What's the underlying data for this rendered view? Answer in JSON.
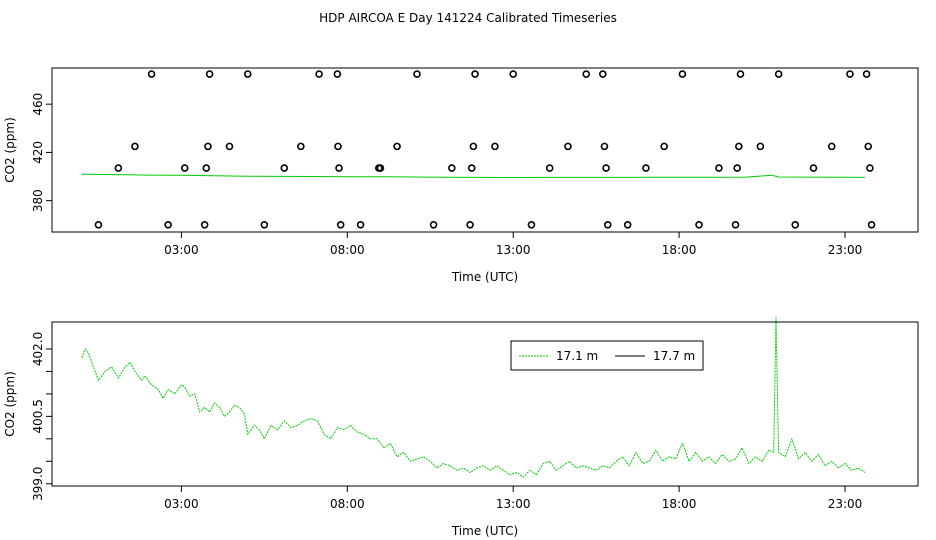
{
  "title": "HDP AIRCOA E  Day 141224  Calibrated Timeseries",
  "colors": {
    "series_green": "#00cc00",
    "series_black": "#000000",
    "axis": "#000000"
  },
  "chart_data": [
    {
      "type": "scatter",
      "title": "",
      "xlabel": "Time (UTC)",
      "ylabel": "CO2 (ppm)",
      "xlim": [
        -0.9,
        25.2
      ],
      "ylim": [
        354,
        490
      ],
      "x_ticks": [
        3,
        8,
        13,
        18,
        23
      ],
      "x_tick_labels": [
        "03:00",
        "08:00",
        "13:00",
        "18:00",
        "23:00"
      ],
      "y_ticks": [
        380,
        420,
        460
      ],
      "y_tick_labels": [
        "380",
        "420",
        "460"
      ],
      "grid": false,
      "calibration_points": [
        {
          "x": 0.5,
          "y": 360
        },
        {
          "x": 1.1,
          "y": 407
        },
        {
          "x": 1.6,
          "y": 425
        },
        {
          "x": 2.1,
          "y": 485
        },
        {
          "x": 2.6,
          "y": 360
        },
        {
          "x": 3.1,
          "y": 407
        },
        {
          "x": 3.7,
          "y": 360
        },
        {
          "x": 3.75,
          "y": 407
        },
        {
          "x": 3.8,
          "y": 425
        },
        {
          "x": 3.85,
          "y": 485
        },
        {
          "x": 4.45,
          "y": 425
        },
        {
          "x": 5.0,
          "y": 485
        },
        {
          "x": 5.5,
          "y": 360
        },
        {
          "x": 6.1,
          "y": 407
        },
        {
          "x": 6.6,
          "y": 425
        },
        {
          "x": 7.15,
          "y": 485
        },
        {
          "x": 7.7,
          "y": 485
        },
        {
          "x": 7.72,
          "y": 425
        },
        {
          "x": 7.75,
          "y": 407
        },
        {
          "x": 7.8,
          "y": 360
        },
        {
          "x": 8.4,
          "y": 360
        },
        {
          "x": 8.95,
          "y": 407
        },
        {
          "x": 9.0,
          "y": 407
        },
        {
          "x": 9.5,
          "y": 425
        },
        {
          "x": 10.1,
          "y": 485
        },
        {
          "x": 10.6,
          "y": 360
        },
        {
          "x": 11.15,
          "y": 407
        },
        {
          "x": 11.7,
          "y": 360
        },
        {
          "x": 11.75,
          "y": 407
        },
        {
          "x": 11.8,
          "y": 425
        },
        {
          "x": 11.85,
          "y": 485
        },
        {
          "x": 12.45,
          "y": 425
        },
        {
          "x": 13.0,
          "y": 485
        },
        {
          "x": 13.55,
          "y": 360
        },
        {
          "x": 14.1,
          "y": 407
        },
        {
          "x": 14.65,
          "y": 425
        },
        {
          "x": 15.2,
          "y": 485
        },
        {
          "x": 15.7,
          "y": 485
        },
        {
          "x": 15.75,
          "y": 425
        },
        {
          "x": 15.8,
          "y": 407
        },
        {
          "x": 15.85,
          "y": 360
        },
        {
          "x": 16.45,
          "y": 360
        },
        {
          "x": 17.0,
          "y": 407
        },
        {
          "x": 17.55,
          "y": 425
        },
        {
          "x": 18.1,
          "y": 485
        },
        {
          "x": 18.6,
          "y": 360
        },
        {
          "x": 19.2,
          "y": 407
        },
        {
          "x": 19.7,
          "y": 360
        },
        {
          "x": 19.75,
          "y": 407
        },
        {
          "x": 19.8,
          "y": 425
        },
        {
          "x": 19.85,
          "y": 485
        },
        {
          "x": 20.45,
          "y": 425
        },
        {
          "x": 21.0,
          "y": 485
        },
        {
          "x": 21.5,
          "y": 360
        },
        {
          "x": 22.05,
          "y": 407
        },
        {
          "x": 22.6,
          "y": 425
        },
        {
          "x": 23.15,
          "y": 485
        },
        {
          "x": 23.65,
          "y": 485
        },
        {
          "x": 23.7,
          "y": 425
        },
        {
          "x": 23.75,
          "y": 407
        },
        {
          "x": 23.8,
          "y": 360
        }
      ],
      "series": [
        {
          "name": "",
          "color": "#00cc00",
          "x": [
            0.0,
            1.0,
            2.0,
            3.0,
            4.0,
            5.0,
            6.0,
            7.0,
            8.0,
            9.0,
            10.0,
            11.0,
            12.0,
            13.0,
            14.0,
            15.0,
            16.0,
            17.0,
            18.0,
            19.0,
            20.0,
            20.8,
            21.0,
            22.0,
            23.0,
            23.6
          ],
          "y": [
            401.9,
            401.6,
            401.2,
            401.0,
            400.7,
            400.3,
            400.1,
            400.0,
            399.9,
            399.8,
            399.6,
            399.4,
            399.3,
            399.2,
            399.3,
            399.3,
            399.3,
            399.4,
            399.4,
            399.4,
            399.5,
            401.0,
            399.6,
            399.5,
            399.4,
            399.3
          ]
        }
      ]
    },
    {
      "type": "line",
      "title": "",
      "xlabel": "Time (UTC)",
      "ylabel": "CO2 (ppm)",
      "xlim": [
        -0.9,
        25.2
      ],
      "ylim": [
        398.95,
        402.6
      ],
      "x_ticks": [
        3,
        8,
        13,
        18,
        23
      ],
      "x_tick_labels": [
        "03:00",
        "08:00",
        "13:00",
        "18:00",
        "23:00"
      ],
      "y_ticks": [
        399.0,
        399.5,
        400.0,
        400.5,
        401.0,
        401.5,
        402.0
      ],
      "y_tick_labels": [
        "399.0",
        "",
        "",
        "400.5",
        "",
        "",
        "402.0"
      ],
      "grid": false,
      "legend": {
        "position": "top-center"
      },
      "series": [
        {
          "name": "17.1 m",
          "color": "#00cc00",
          "dash": "2,1",
          "x": [
            0.0,
            0.1,
            0.2,
            0.35,
            0.5,
            0.7,
            0.9,
            1.1,
            1.3,
            1.45,
            1.6,
            1.8,
            1.9,
            2.1,
            2.3,
            2.45,
            2.6,
            2.8,
            3.0,
            3.1,
            3.25,
            3.4,
            3.55,
            3.7,
            3.85,
            4.0,
            4.15,
            4.3,
            4.45,
            4.6,
            4.75,
            4.9,
            5.0,
            5.2,
            5.35,
            5.5,
            5.7,
            5.9,
            6.1,
            6.3,
            6.5,
            6.7,
            6.9,
            7.1,
            7.3,
            7.5,
            7.7,
            7.9,
            8.1,
            8.3,
            8.5,
            8.7,
            8.9,
            9.1,
            9.3,
            9.5,
            9.7,
            9.9,
            10.1,
            10.3,
            10.5,
            10.7,
            10.9,
            11.1,
            11.3,
            11.5,
            11.7,
            11.9,
            12.1,
            12.3,
            12.5,
            12.7,
            12.9,
            13.1,
            13.3,
            13.5,
            13.7,
            13.9,
            14.1,
            14.3,
            14.5,
            14.7,
            14.9,
            15.1,
            15.3,
            15.5,
            15.7,
            15.9,
            16.1,
            16.3,
            16.5,
            16.7,
            16.9,
            17.1,
            17.3,
            17.5,
            17.7,
            17.9,
            18.1,
            18.3,
            18.5,
            18.7,
            18.9,
            19.1,
            19.3,
            19.5,
            19.7,
            19.9,
            20.1,
            20.3,
            20.5,
            20.7,
            20.85,
            20.92,
            21.0,
            21.2,
            21.4,
            21.6,
            21.8,
            22.0,
            22.2,
            22.4,
            22.6,
            22.8,
            23.0,
            23.2,
            23.4,
            23.6
          ],
          "y": [
            401.8,
            402.0,
            401.9,
            401.6,
            401.3,
            401.5,
            401.6,
            401.35,
            401.6,
            401.7,
            401.5,
            401.3,
            401.4,
            401.2,
            401.1,
            400.9,
            401.1,
            401.0,
            401.2,
            401.15,
            400.95,
            401.0,
            400.6,
            400.7,
            400.6,
            400.8,
            400.7,
            400.5,
            400.6,
            400.75,
            400.7,
            400.55,
            400.1,
            400.3,
            400.2,
            400.0,
            400.3,
            400.2,
            400.4,
            400.25,
            400.3,
            400.4,
            400.45,
            400.4,
            400.1,
            400.0,
            400.25,
            400.2,
            400.3,
            400.15,
            400.1,
            400.0,
            400.0,
            399.8,
            399.9,
            399.6,
            399.7,
            399.5,
            399.55,
            399.6,
            399.5,
            399.35,
            399.45,
            399.4,
            399.3,
            399.35,
            399.25,
            399.35,
            399.4,
            399.3,
            399.4,
            399.3,
            399.2,
            399.25,
            399.15,
            399.3,
            399.2,
            399.45,
            399.5,
            399.3,
            399.4,
            399.5,
            399.35,
            399.4,
            399.35,
            399.3,
            399.4,
            399.35,
            399.5,
            399.6,
            399.4,
            399.7,
            399.45,
            399.5,
            399.75,
            399.5,
            399.6,
            399.55,
            399.9,
            399.5,
            399.7,
            399.5,
            399.6,
            399.45,
            399.65,
            399.5,
            399.55,
            399.8,
            399.45,
            399.6,
            399.5,
            399.75,
            399.7,
            402.7,
            399.7,
            399.6,
            400.0,
            399.55,
            399.7,
            399.5,
            399.65,
            399.4,
            399.5,
            399.35,
            399.45,
            399.3,
            399.35,
            399.25
          ]
        },
        {
          "name": "17.7 m",
          "color": "#000000",
          "dash": "",
          "x": [],
          "y": []
        }
      ]
    }
  ]
}
